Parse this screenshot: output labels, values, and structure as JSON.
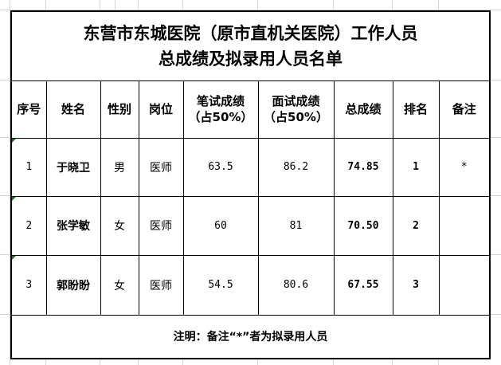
{
  "title_line1": "东营市东城医院（原市直机关医院）工作人员",
  "title_line2": "总成绩及拟录用人员名单",
  "headers": {
    "seq": "序号",
    "name": "姓名",
    "gender": "性别",
    "position": "岗位",
    "written_l1": "笔试成绩",
    "written_l2": "（占50%）",
    "interview_l1": "面试成绩",
    "interview_l2": "（占50%）",
    "total": "总成绩",
    "rank": "排名",
    "note": "备注"
  },
  "rows": [
    {
      "seq": "1",
      "name": "于晓卫",
      "gender": "男",
      "position": "医师",
      "written": "63.5",
      "interview": "86.2",
      "total": "74.85",
      "rank": "1",
      "note": "*"
    },
    {
      "seq": "2",
      "name": "张学敏",
      "gender": "女",
      "position": "医师",
      "written": "60",
      "interview": "81",
      "total": "70.50",
      "rank": "2",
      "note": ""
    },
    {
      "seq": "3",
      "name": "郭盼盼",
      "gender": "女",
      "position": "医师",
      "written": "54.5",
      "interview": "80.6",
      "total": "67.55",
      "rank": "3",
      "note": ""
    }
  ],
  "footer_note": "注明：备注“*”者为拟录用人员",
  "colors": {
    "border": "#000000",
    "gridline": "#d4d4d4",
    "cell_marker": "#1a7a1a"
  }
}
